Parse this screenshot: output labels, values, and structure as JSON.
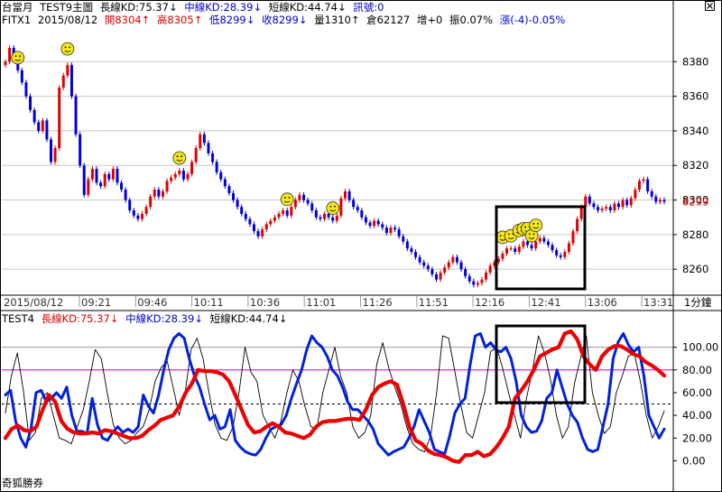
{
  "header1": {
    "title": "台當月",
    "study": "TEST9主圖",
    "long_kd": "長線KD:75.37↓",
    "mid_kd": "中線KD:28.39↓",
    "short_kd": "短線KD:44.74↓",
    "signal": "訊號:0"
  },
  "header2": {
    "symbol": "FITX1",
    "date": "2015/08/12",
    "open": "開8304↑",
    "high": "高8305↑",
    "low": "低8299↓",
    "close": "收8299↓",
    "volume": "量1310↑",
    "oi": "倉62127",
    "oi_change": "增+0",
    "amplitude": "振0.07%",
    "change": "漲(-4)-0.05%"
  },
  "indicator_header": {
    "name": "TEST4",
    "long_kd": "長線KD:75.37↓",
    "mid_kd": "中線KD:28.39↓",
    "short_kd": "短線KD:44.74↓"
  },
  "footer": "奇狐勝券",
  "close_icon": "close-icon",
  "colors": {
    "up": "#e00000",
    "down": "#0000dd",
    "long_line": "#ee0000",
    "mid_line": "#0022dd",
    "short_line": "#000000",
    "ref_line": "#cc00cc",
    "price_tag": "#e00000",
    "smiley": "#f4e61a"
  },
  "chart_data": [
    {
      "type": "candlestick",
      "title": "台當月 TEST9主圖",
      "x_start_label": "2015/08/12",
      "x_ticks": [
        "09:21",
        "09:46",
        "10:11",
        "10:36",
        "11:01",
        "11:26",
        "11:51",
        "12:16",
        "12:41",
        "13:06",
        "13:31"
      ],
      "x_unit_label": "1分鐘",
      "y_ticks": [
        8260,
        8280,
        8300,
        8320,
        8340,
        8360,
        8380
      ],
      "ylim": [
        8246,
        8400
      ],
      "last_price": 8299,
      "close_series": [
        8380,
        8388,
        8382,
        8375,
        8368,
        8360,
        8352,
        8345,
        8340,
        8346,
        8335,
        8322,
        8330,
        8365,
        8372,
        8378,
        8360,
        8338,
        8320,
        8303,
        8312,
        8318,
        8310,
        8308,
        8315,
        8312,
        8318,
        8310,
        8306,
        8300,
        8294,
        8291,
        8289,
        8292,
        8296,
        8302,
        8306,
        8302,
        8305,
        8311,
        8313,
        8315,
        8317,
        8312,
        8315,
        8322,
        8330,
        8338,
        8333,
        8327,
        8322,
        8316,
        8312,
        8308,
        8304,
        8300,
        8296,
        8292,
        8289,
        8286,
        8282,
        8279,
        8283,
        8286,
        8288,
        8290,
        8292,
        8294,
        8291,
        8296,
        8300,
        8303,
        8300,
        8298,
        8294,
        8290,
        8289,
        8292,
        8290,
        8288,
        8291,
        8301,
        8305,
        8300,
        8296,
        8294,
        8290,
        8287,
        8285,
        8288,
        8286,
        8284,
        8281,
        8284,
        8283,
        8279,
        8276,
        8272,
        8270,
        8267,
        8264,
        8262,
        8260,
        8257,
        8254,
        8258,
        8261,
        8264,
        8267,
        8264,
        8260,
        8256,
        8253,
        8251,
        8252,
        8254,
        8258,
        8262,
        8264,
        8266,
        8269,
        8272,
        8272,
        8270,
        8273,
        8276,
        8274,
        8272,
        8276,
        8278,
        8276,
        8274,
        8271,
        8268,
        8267,
        8270,
        8275,
        8282,
        8289,
        8296,
        8302,
        8298,
        8296,
        8294,
        8295,
        8296,
        8294,
        8298,
        8296,
        8300,
        8297,
        8301,
        8306,
        8311,
        8312,
        8305,
        8302,
        8299,
        8300,
        8299
      ],
      "smiley_markers_at_bar": [
        3,
        15,
        42,
        68,
        79,
        120,
        122,
        124,
        125,
        126,
        127,
        128
      ]
    },
    {
      "type": "line",
      "title": "TEST4",
      "y_ticks": [
        0,
        20,
        40,
        60,
        80,
        100
      ],
      "ylim": [
        -10,
        118
      ],
      "reference_lines": [
        {
          "value": 80,
          "style": "magenta"
        },
        {
          "value": 50,
          "style": "dashed"
        },
        {
          "value": 100,
          "style": "gray"
        }
      ],
      "series": [
        {
          "name": "長線KD",
          "values": [
            20,
            28,
            31,
            27,
            26,
            30,
            45,
            58,
            52,
            35,
            28,
            25,
            24,
            24,
            25,
            24,
            27,
            26,
            24,
            22,
            20,
            20,
            22,
            27,
            31,
            36,
            38,
            40,
            48,
            60,
            68,
            80,
            79,
            79,
            78,
            76,
            70,
            58,
            45,
            32,
            25,
            26,
            30,
            33,
            30,
            25,
            24,
            22,
            20,
            23,
            30,
            34,
            35,
            35,
            36,
            37,
            37,
            36,
            45,
            58,
            65,
            68,
            70,
            67,
            50,
            30,
            18,
            15,
            9,
            6,
            5,
            3,
            0,
            -1,
            5,
            5,
            8,
            4,
            6,
            12,
            20,
            30,
            55,
            62,
            70,
            80,
            92,
            95,
            98,
            100,
            112,
            114,
            107,
            92,
            85,
            80,
            92,
            98,
            101,
            101,
            98,
            94,
            92,
            87,
            84,
            80,
            75
          ]
        },
        {
          "name": "中線KD",
          "values": [
            58,
            62,
            35,
            20,
            12,
            28,
            60,
            62,
            52,
            55,
            60,
            55,
            65,
            40,
            26,
            26,
            24,
            55,
            32,
            20,
            18,
            25,
            30,
            25,
            28,
            25,
            30,
            58,
            48,
            42,
            58,
            80,
            98,
            108,
            112,
            108,
            90,
            75,
            65,
            50,
            36,
            40,
            28,
            30,
            45,
            18,
            12,
            8,
            6,
            5,
            10,
            20,
            28,
            30,
            32,
            40,
            55,
            68,
            80,
            98,
            110,
            104,
            100,
            92,
            80,
            75,
            65,
            52,
            45,
            45,
            40,
            35,
            28,
            15,
            10,
            5,
            8,
            10,
            12,
            20,
            30,
            45,
            35,
            25,
            10,
            8,
            6,
            22,
            42,
            50,
            55,
            85,
            110,
            112,
            100,
            104,
            98,
            96,
            100,
            90,
            70,
            40,
            30,
            25,
            26,
            35,
            55,
            60,
            80,
            65,
            50,
            40,
            34,
            20,
            10,
            8,
            10,
            30,
            50,
            90,
            105,
            112,
            102,
            96,
            100,
            75,
            40,
            30,
            20,
            28
          ]
        },
        {
          "name": "短線KD",
          "values": [
            42,
            75,
            95,
            62,
            18,
            25,
            55,
            60,
            40,
            20,
            18,
            15,
            30,
            45,
            70,
            98,
            90,
            60,
            32,
            20,
            15,
            18,
            25,
            30,
            45,
            70,
            82,
            88,
            65,
            40,
            60,
            98,
            108,
            90,
            60,
            32,
            20,
            18,
            30,
            60,
            100,
            78,
            70,
            40,
            30,
            20,
            35,
            60,
            80,
            70,
            48,
            30,
            28,
            60,
            80,
            100,
            74,
            60,
            30,
            20,
            25,
            40,
            85,
            104,
            82,
            65,
            50,
            30,
            15,
            10,
            8,
            22,
            60,
            110,
            108,
            80,
            50,
            25,
            20,
            40,
            60,
            96,
            100,
            82,
            60,
            40,
            20,
            55,
            80,
            110,
            95,
            72,
            40,
            20,
            30,
            68,
            90,
            110,
            60,
            40,
            24,
            30,
            60,
            75,
            92,
            95,
            70,
            40,
            20,
            30,
            44
          ]
        }
      ]
    }
  ]
}
